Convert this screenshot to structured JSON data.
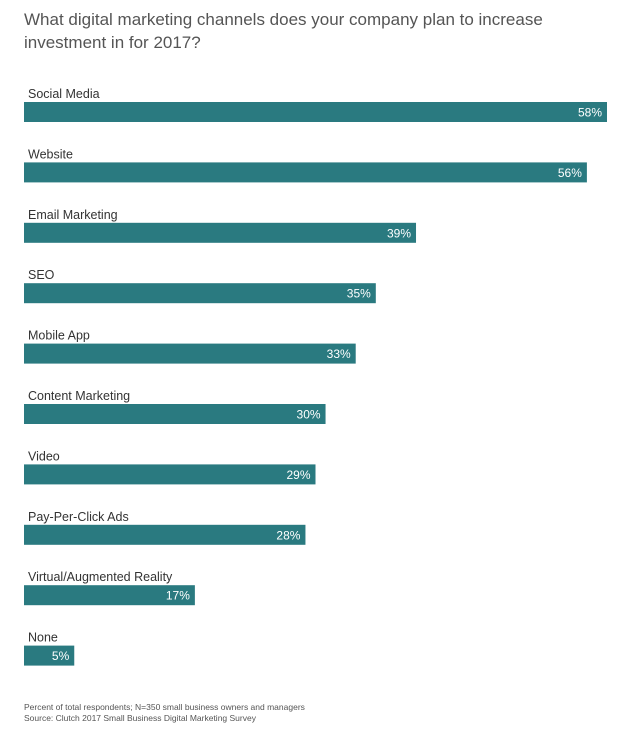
{
  "chart_data": {
    "type": "bar",
    "orientation": "horizontal",
    "title": "What digital marketing channels does your company plan to increase investment in for 2017?",
    "categories": [
      "Social Media",
      "Website",
      "Email Marketing",
      "SEO",
      "Mobile App",
      "Content Marketing",
      "Video",
      "Pay-Per-Click Ads",
      "Virtual/Augmented Reality",
      "None"
    ],
    "values": [
      58,
      56,
      39,
      35,
      33,
      30,
      29,
      28,
      17,
      5
    ],
    "value_labels": [
      "58%",
      "56%",
      "39%",
      "35%",
      "33%",
      "30%",
      "29%",
      "28%",
      "17%",
      "5%"
    ],
    "xlim": [
      0,
      58
    ],
    "grid": false,
    "legend": "none",
    "bar_color": "#2a7a80",
    "value_label_color": "#ffffff"
  },
  "footnote": {
    "line1": "Percent of total respondents; N=350 small business owners and managers",
    "line2": "Source: Clutch 2017 Small Business Digital Marketing Survey"
  }
}
